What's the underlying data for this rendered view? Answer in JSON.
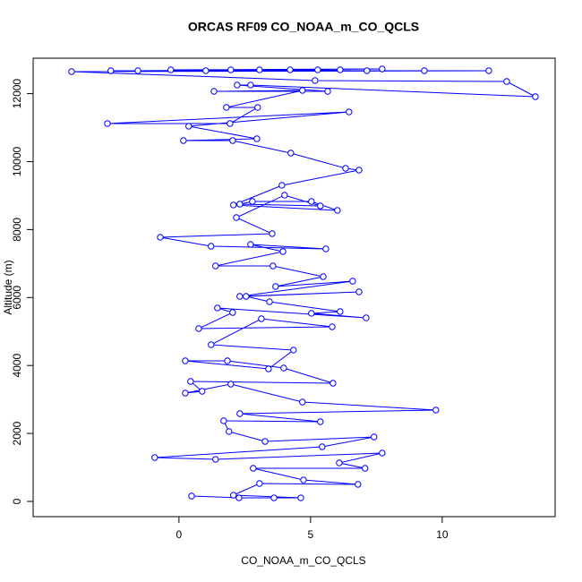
{
  "chart_data": {
    "type": "line",
    "title": "ORCAS RF09 CO_NOAA_m_CO_QCLS",
    "x_label": "CO_NOAA_m_CO_QCLS",
    "y_label": "Altitude (m)",
    "series": [
      {
        "color": "#0000ff",
        "x": [
          0.48,
          2.28,
          3.61,
          4.63,
          2.07,
          3.06,
          6.8,
          4.73,
          2.82,
          7.07,
          6.09,
          7.72,
          1.39,
          -0.92,
          5.44,
          7.41,
          3.27,
          1.9,
          1.7,
          5.37,
          2.31,
          9.76,
          4.69,
          1.97,
          0.24,
          0.88,
          0.44,
          5.85,
          3.98,
          1.84,
          0.24,
          3.4,
          4.35,
          1.22,
          3.13,
          5.82,
          0.75,
          2.04,
          1.46,
          7.11,
          5.03,
          6.12,
          3.44,
          2.55,
          6.84,
          2.31,
          6.6,
          3.67,
          5.48,
          3.57,
          1.39,
          3.95,
          2.72,
          5.58,
          1.22,
          -0.71,
          3.54,
          2.18,
          4.01,
          5.37,
          2.31,
          2.79,
          5.03,
          6.02,
          2.07,
          3.91,
          6.84,
          6.33,
          4.25,
          2.04,
          0.17,
          2.96,
          0.37,
          6.46,
          -2.72,
          1.94,
          2.99,
          1.8,
          4.69,
          1.33,
          5.65,
          2.21,
          2.72,
          13.54,
          12.45,
          5.17,
          -4.08,
          11.77,
          -2.59,
          9.32,
          -1.56,
          7.72,
          -0.31,
          7.14,
          1.02,
          6.12,
          1.97,
          5.27,
          3.06,
          4.22
        ],
        "values": [
          158,
          105,
          105,
          105,
          184,
          527,
          501,
          632,
          975,
          975,
          1133,
          1423,
          1238,
          1291,
          1607,
          1897,
          1765,
          2055,
          2372,
          2345,
          2582,
          2688,
          2925,
          3452,
          3188,
          3241,
          3531,
          3478,
          3926,
          4137,
          4137,
          3900,
          4453,
          4611,
          5375,
          5138,
          5086,
          5560,
          5692,
          5402,
          5534,
          5586,
          5876,
          6034,
          6166,
          6034,
          6482,
          6324,
          6614,
          6930,
          6930,
          7352,
          7563,
          7431,
          7510,
          7773,
          7879,
          8353,
          9012,
          8696,
          8748,
          8827,
          8827,
          8564,
          8722,
          9302,
          9750,
          9802,
          10250,
          10619,
          10619,
          10672,
          11041,
          11462,
          11120,
          11120,
          11594,
          11594,
          12095,
          12068,
          12068,
          12253,
          12253,
          11910,
          12358,
          12385,
          12648,
          12674,
          12674,
          12674,
          12674,
          12727,
          12701,
          12674,
          12674,
          12701,
          12701,
          12701,
          12701,
          12701
        ]
      }
    ],
    "xlim": [
      -5.54,
      14.29
    ],
    "ylim": [
      -448,
      13043
    ],
    "xticks": [
      0,
      5,
      10
    ],
    "yticks": [
      0,
      2000,
      4000,
      6000,
      8000,
      10000,
      12000
    ]
  }
}
